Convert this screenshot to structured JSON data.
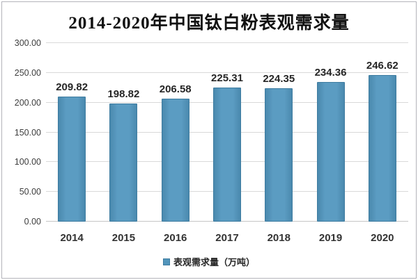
{
  "chart_data": {
    "type": "bar",
    "title": "2014-2020年中国钛白粉表观需求量",
    "categories": [
      "2014",
      "2015",
      "2016",
      "2017",
      "2018",
      "2019",
      "2020"
    ],
    "values": [
      209.82,
      198.82,
      206.58,
      225.31,
      224.35,
      234.36,
      246.62
    ],
    "value_labels": [
      "209.82",
      "198.82",
      "206.58",
      "225.31",
      "224.35",
      "234.36",
      "246.62"
    ],
    "series_name": "表观需求量（万吨）",
    "legend": [
      "表观需求量（万吨）"
    ],
    "legend_position": "bottom",
    "xlabel": "",
    "ylabel": "",
    "ylim": [
      0,
      300
    ],
    "ytick_step": 50,
    "ytick_labels": [
      "0.00",
      "50.00",
      "100.00",
      "150.00",
      "200.00",
      "250.00",
      "300.00"
    ],
    "grid": true
  },
  "colors": {
    "bar_fill": "#5295bb",
    "bar_border": "#3e7ca0",
    "gridline": "#d9d9d9",
    "title_text": "#111111",
    "label_text": "#262626",
    "background": "#ffffff",
    "frame_border": "#b3b3ba"
  }
}
